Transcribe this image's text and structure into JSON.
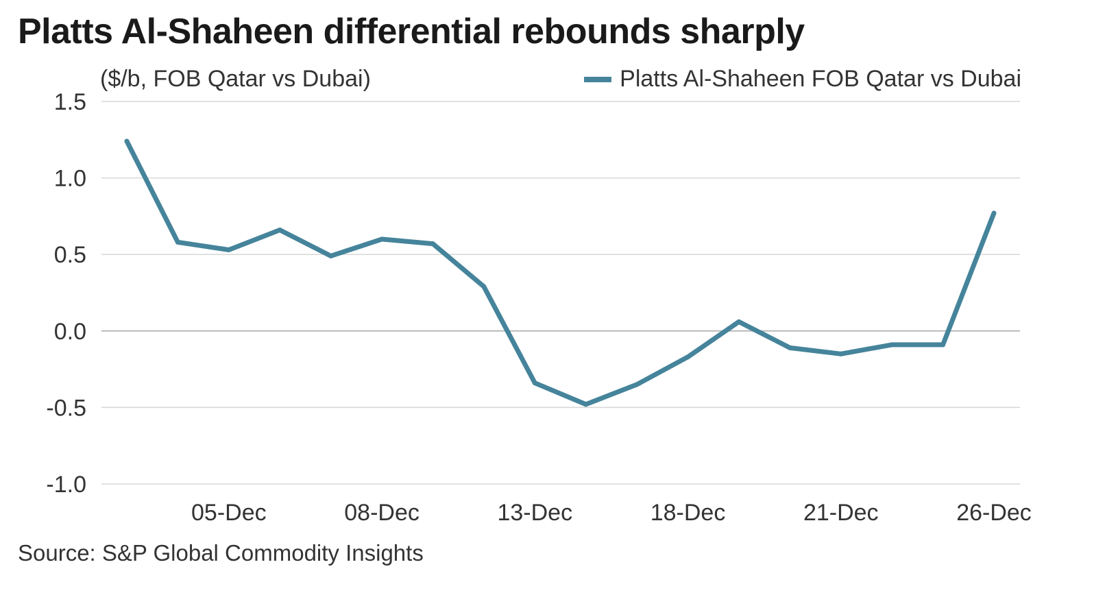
{
  "header": {
    "title": "Platts Al-Shaheen differential rebounds sharply",
    "unit_label": "($/b, FOB Qatar vs Dubai)"
  },
  "legend": {
    "label": "Platts Al-Shaheen FOB Qatar vs Dubai"
  },
  "footer": {
    "source": "Source: S&P Global Commodity Insights"
  },
  "colors": {
    "series": "#45849b",
    "grid": "#d7d7d7",
    "zero_line": "#b9b9b9"
  },
  "chart_data": {
    "type": "line",
    "title": "Platts Al-Shaheen differential rebounds sharply",
    "ylabel": "($/b, FOB Qatar vs Dubai)",
    "xlabel": "",
    "ylim": [
      -1.0,
      1.5
    ],
    "yticks": [
      1.5,
      1.0,
      0.5,
      0.0,
      -0.5,
      -1.0
    ],
    "ytick_labels": [
      "1.5",
      "1.0",
      "0.5",
      "0.0",
      "-0.5",
      "-1.0"
    ],
    "grid": true,
    "legend_position": "top-right",
    "x_tick_labels": [
      "05-Dec",
      "08-Dec",
      "13-Dec",
      "18-Dec",
      "21-Dec",
      "26-Dec"
    ],
    "x_tick_indices": [
      2,
      5,
      8,
      11,
      14,
      17
    ],
    "series": [
      {
        "name": "Platts Al-Shaheen FOB Qatar vs Dubai",
        "values": [
          1.24,
          0.58,
          0.53,
          0.66,
          0.49,
          0.6,
          0.57,
          0.29,
          -0.34,
          -0.48,
          -0.35,
          -0.17,
          0.06,
          -0.11,
          -0.15,
          -0.09,
          -0.09,
          0.77
        ]
      }
    ]
  }
}
